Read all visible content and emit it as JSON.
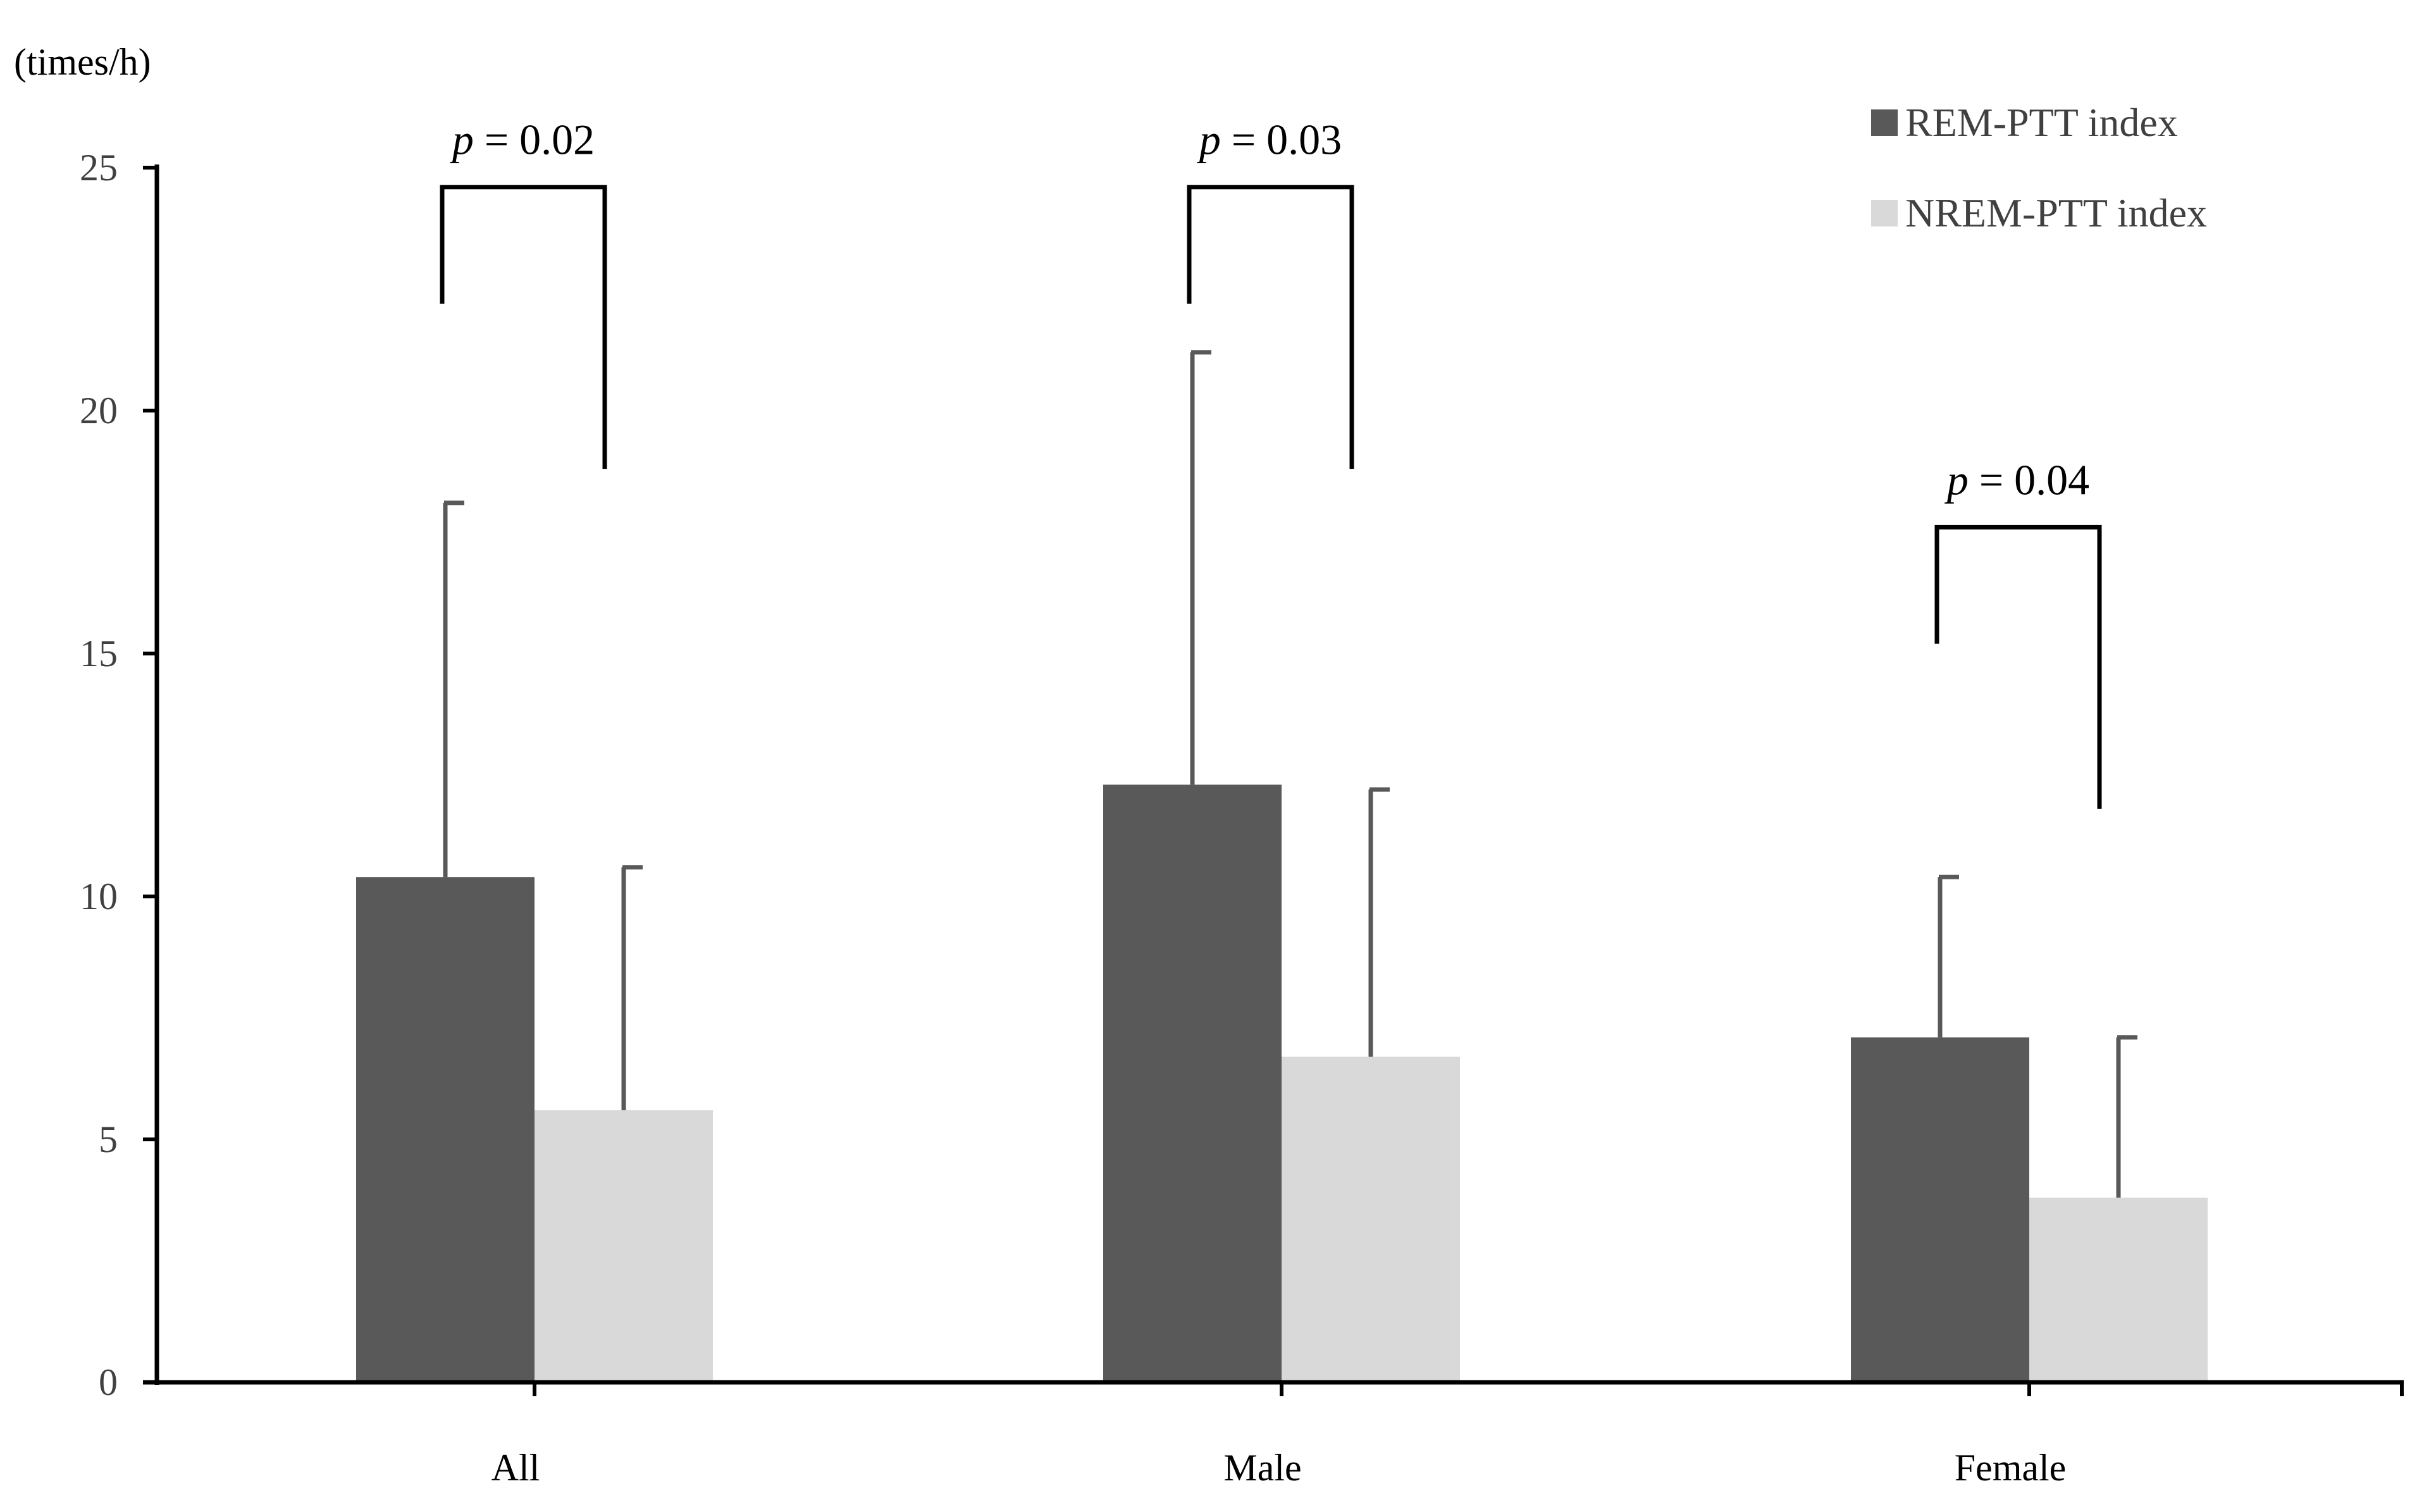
{
  "chart_data": {
    "type": "bar",
    "title": "",
    "xlabel": "",
    "ylabel": "",
    "unit_label": "(times/h)",
    "categories": [
      "All",
      "Male",
      "Female"
    ],
    "series": [
      {
        "name": "REM-PTT index",
        "color": "#595959",
        "values": [
          10.4,
          12.3,
          7.1
        ],
        "error_upper": [
          18.1,
          21.2,
          10.4
        ]
      },
      {
        "name": "NREM-PTT index",
        "color": "#d9d9d9",
        "values": [
          5.6,
          6.7,
          3.8
        ],
        "error_upper": [
          10.6,
          12.2,
          7.1
        ]
      }
    ],
    "ylim": [
      0,
      25
    ],
    "yticks": [
      0,
      5,
      10,
      15,
      20,
      25
    ],
    "grid": false,
    "legend_position": "top-right",
    "annotations": [
      {
        "category": "All",
        "p_symbol": "p",
        "p_rest": " = 0.02",
        "bracket_top": 24.6,
        "left_end": 22.2,
        "right_end": 18.8
      },
      {
        "category": "Male",
        "p_symbol": "p",
        "p_rest": " = 0.03",
        "bracket_top": 24.6,
        "left_end": 22.2,
        "right_end": 18.8
      },
      {
        "category": "Female",
        "p_symbol": "p",
        "p_rest": " = 0.04",
        "bracket_top": 17.6,
        "left_end": 15.2,
        "right_end": 11.8
      }
    ],
    "axis_color": "#000000",
    "errorbar_color": "#595959"
  }
}
